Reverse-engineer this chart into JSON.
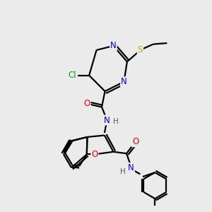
{
  "background_color": "#ebebeb",
  "bond_color": "#000000",
  "bond_lw": 1.6,
  "atom_colors": {
    "N": "#0000ee",
    "O": "#ee0000",
    "Cl": "#00aa00",
    "S": "#bbaa00",
    "H": "#555555"
  },
  "font_size": 8.5,
  "figsize": [
    3.0,
    3.0
  ],
  "dpi": 100
}
